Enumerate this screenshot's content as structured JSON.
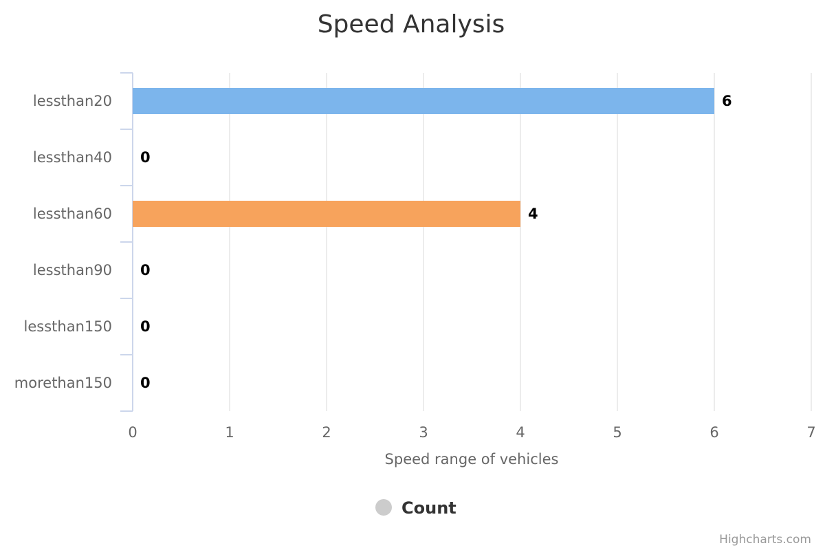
{
  "chart_data": {
    "type": "bar",
    "orientation": "horizontal",
    "title": "Speed Analysis",
    "categories": [
      "lessthan20",
      "lessthan40",
      "lessthan60",
      "lessthan90",
      "lessthan150",
      "morethan150"
    ],
    "series": [
      {
        "name": "Count",
        "values": [
          6,
          0,
          4,
          0,
          0,
          0
        ],
        "colors": [
          "#7cb5ec",
          "#7cb5ec",
          "#f7a35c",
          "#7cb5ec",
          "#7cb5ec",
          "#7cb5ec"
        ]
      }
    ],
    "xlabel": "",
    "ylabel": "Speed range of vehicles",
    "value_axis_range": [
      0,
      7
    ],
    "value_axis_ticks": [
      0,
      1,
      2,
      3,
      4,
      5,
      6,
      7
    ],
    "grid": true,
    "data_labels": true,
    "legend": {
      "placement": "bottom-center",
      "symbol_color": "#cccccc"
    },
    "credits": "Highcharts.com"
  }
}
